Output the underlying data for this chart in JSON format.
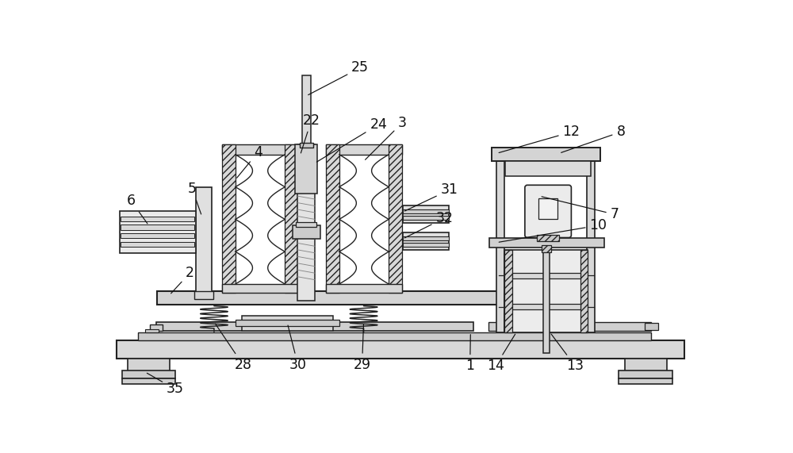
{
  "bg_color": "#ffffff",
  "lc": "#222222",
  "figsize": [
    10.0,
    5.71
  ],
  "dpi": 100
}
